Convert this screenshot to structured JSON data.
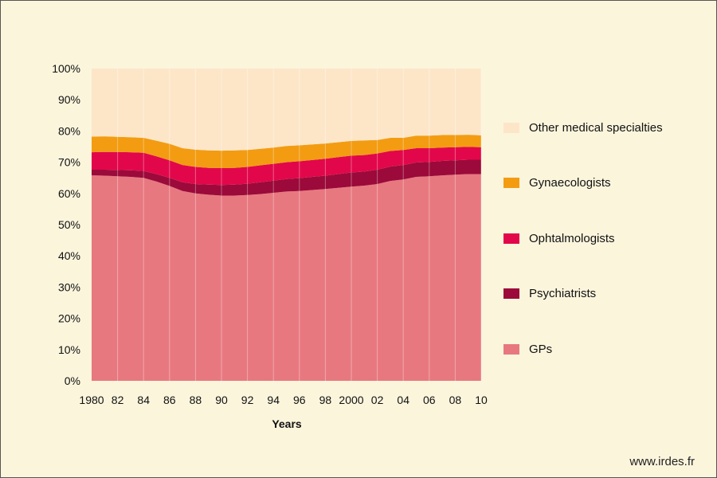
{
  "chart_data": {
    "type": "area",
    "stacked": true,
    "percent": true,
    "xlabel": "Years",
    "ylabel": "",
    "ylim": [
      0,
      100
    ],
    "x": [
      1980,
      1981,
      1982,
      1983,
      1984,
      1985,
      1986,
      1987,
      1988,
      1989,
      1990,
      1991,
      1992,
      1993,
      1994,
      1995,
      1996,
      1997,
      1998,
      1999,
      2000,
      2001,
      2002,
      2003,
      2004,
      2005,
      2006,
      2007,
      2008,
      2009,
      2010
    ],
    "x_tick_labels": [
      "1980",
      "82",
      "84",
      "86",
      "88",
      "90",
      "92",
      "94",
      "96",
      "98",
      "2000",
      "02",
      "04",
      "06",
      "08",
      "10"
    ],
    "y_ticks": [
      0,
      10,
      20,
      30,
      40,
      50,
      60,
      70,
      80,
      90,
      100
    ],
    "y_tick_labels": [
      "0%",
      "10%",
      "20%",
      "30%",
      "40%",
      "50%",
      "60%",
      "70%",
      "80%",
      "90%",
      "100%"
    ],
    "series": [
      {
        "name": "GPs",
        "color": "#e87880",
        "values": [
          65.8,
          65.7,
          65.5,
          65.3,
          65.0,
          63.8,
          62.4,
          60.8,
          60.0,
          59.6,
          59.3,
          59.3,
          59.5,
          59.8,
          60.2,
          60.6,
          60.8,
          61.1,
          61.4,
          61.8,
          62.2,
          62.5,
          63.0,
          64.0,
          64.5,
          65.3,
          65.5,
          65.8,
          66.0,
          66.2,
          66.2
        ]
      },
      {
        "name": "Psychiatrists",
        "color": "#9b0a3a",
        "values": [
          1.8,
          1.9,
          2.0,
          2.1,
          2.2,
          2.4,
          2.6,
          2.8,
          3.0,
          3.2,
          3.4,
          3.5,
          3.6,
          3.8,
          3.9,
          4.0,
          4.1,
          4.2,
          4.3,
          4.4,
          4.5,
          4.5,
          4.6,
          4.6,
          4.6,
          4.6,
          4.6,
          4.6,
          4.6,
          4.6,
          4.6
        ]
      },
      {
        "name": "Ophtalmologists",
        "color": "#e2074b",
        "values": [
          5.6,
          5.7,
          5.8,
          5.8,
          5.8,
          5.7,
          5.6,
          5.5,
          5.5,
          5.4,
          5.4,
          5.4,
          5.4,
          5.4,
          5.4,
          5.4,
          5.4,
          5.4,
          5.4,
          5.4,
          5.4,
          5.3,
          5.2,
          5.0,
          4.8,
          4.6,
          4.4,
          4.3,
          4.2,
          4.1,
          4.0
        ]
      },
      {
        "name": "Gynaecologists",
        "color": "#f39c12",
        "values": [
          5.0,
          5.0,
          4.8,
          4.8,
          4.8,
          5.0,
          5.3,
          5.4,
          5.5,
          5.6,
          5.6,
          5.6,
          5.4,
          5.3,
          5.2,
          5.2,
          5.1,
          5.0,
          4.9,
          4.8,
          4.7,
          4.7,
          4.3,
          4.2,
          3.9,
          4.0,
          4.0,
          4.0,
          3.9,
          3.9,
          3.8
        ]
      },
      {
        "name": "Other medical specialties",
        "color": "#fde6c8",
        "values": [
          21.8,
          21.7,
          21.9,
          22.0,
          22.2,
          23.1,
          24.1,
          25.5,
          26.0,
          26.2,
          26.3,
          26.2,
          26.1,
          25.7,
          25.3,
          24.8,
          24.6,
          24.3,
          24.0,
          23.6,
          23.2,
          23.0,
          22.9,
          22.2,
          22.2,
          21.5,
          21.5,
          21.3,
          21.3,
          21.2,
          21.4
        ]
      }
    ],
    "legend_position": "right",
    "grid": false
  },
  "source": "www.irdes.fr"
}
